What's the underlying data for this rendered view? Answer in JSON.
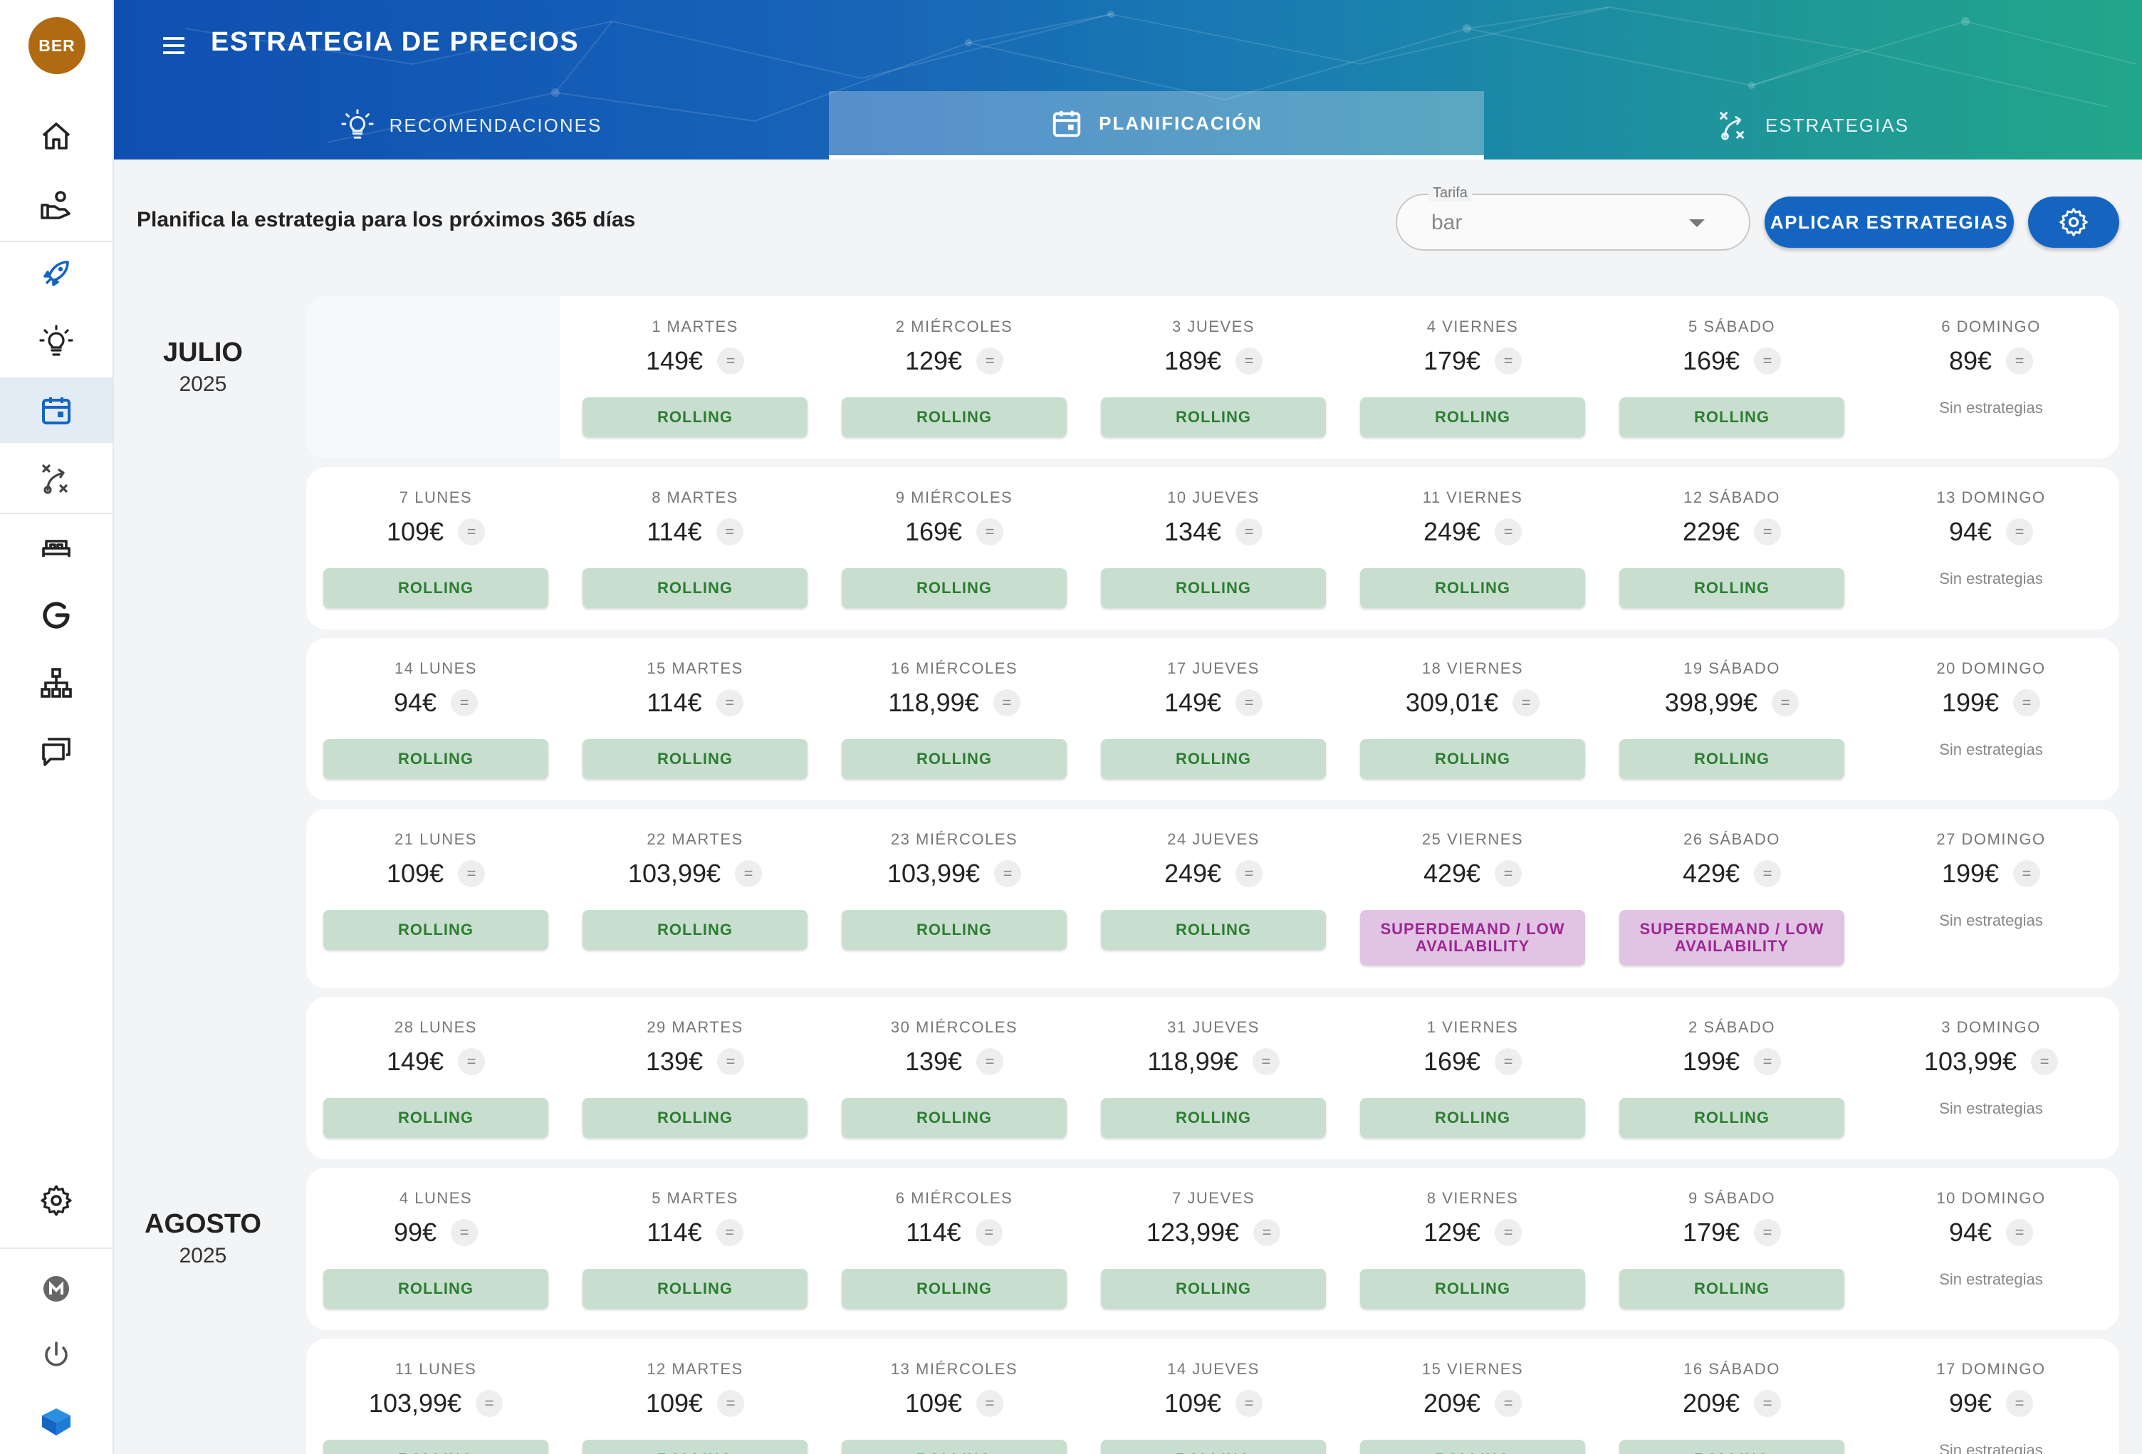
{
  "app": {
    "avatar_text": "BER",
    "title": "ESTRATEGIA DE PRECIOS",
    "colors": {
      "header_start": "#0f4fb0",
      "header_end": "#22a68a",
      "primary": "#1565c0",
      "rolling_bg": "#c8dfd0",
      "rolling_text": "#2e7d32",
      "superdemand_bg": "#e1c4e3",
      "superdemand_text": "#9c2792"
    }
  },
  "sidebar": {
    "items": [
      {
        "icon": "home-icon"
      },
      {
        "icon": "hand-money-icon"
      },
      {
        "icon": "rocket-icon"
      },
      {
        "icon": "lightbulb-icon"
      },
      {
        "icon": "calendar-icon",
        "active": true
      },
      {
        "icon": "strategy-icon"
      },
      {
        "icon": "bed-icon"
      },
      {
        "icon": "google-icon"
      },
      {
        "icon": "hierarchy-icon"
      },
      {
        "icon": "chat-icon"
      }
    ],
    "bottom": [
      {
        "icon": "settings-icon"
      },
      {
        "icon": "m-logo-icon"
      },
      {
        "icon": "power-icon"
      },
      {
        "icon": "brand-logo-icon"
      }
    ]
  },
  "tabs": [
    {
      "label": "RECOMENDACIONES",
      "icon": "lightbulb-icon"
    },
    {
      "label": "PLANIFICACIÓN",
      "icon": "calendar-icon",
      "active": true
    },
    {
      "label": "ESTRATEGIAS",
      "icon": "strategy-icon"
    }
  ],
  "toolbar": {
    "plan_text": "Planifica la estrategia para los próximos 365 días",
    "tarifa_label": "Tarifa",
    "tarifa_value": "bar",
    "apply_label": "APLICAR ESTRATEGIAS"
  },
  "months": [
    {
      "name": "JULIO",
      "year": "2025"
    },
    {
      "name": "AGOSTO",
      "year": "2025"
    }
  ],
  "eq_symbol": "=",
  "no_strategy_text": "Sin estrategias",
  "weeks": [
    {
      "days": [
        null,
        {
          "label": "1 MARTES",
          "price": "149€",
          "badge": "ROLLING"
        },
        {
          "label": "2 MIÉRCOLES",
          "price": "129€",
          "badge": "ROLLING"
        },
        {
          "label": "3 JUEVES",
          "price": "189€",
          "badge": "ROLLING"
        },
        {
          "label": "4 VIERNES",
          "price": "179€",
          "badge": "ROLLING"
        },
        {
          "label": "5 SÁBADO",
          "price": "169€",
          "badge": "ROLLING"
        },
        {
          "label": "6 DOMINGO",
          "price": "89€",
          "badge": null
        }
      ]
    },
    {
      "days": [
        {
          "label": "7 LUNES",
          "price": "109€",
          "badge": "ROLLING"
        },
        {
          "label": "8 MARTES",
          "price": "114€",
          "badge": "ROLLING"
        },
        {
          "label": "9 MIÉRCOLES",
          "price": "169€",
          "badge": "ROLLING"
        },
        {
          "label": "10 JUEVES",
          "price": "134€",
          "badge": "ROLLING"
        },
        {
          "label": "11 VIERNES",
          "price": "249€",
          "badge": "ROLLING"
        },
        {
          "label": "12 SÁBADO",
          "price": "229€",
          "badge": "ROLLING"
        },
        {
          "label": "13 DOMINGO",
          "price": "94€",
          "badge": null
        }
      ]
    },
    {
      "days": [
        {
          "label": "14 LUNES",
          "price": "94€",
          "badge": "ROLLING"
        },
        {
          "label": "15 MARTES",
          "price": "114€",
          "badge": "ROLLING"
        },
        {
          "label": "16 MIÉRCOLES",
          "price": "118,99€",
          "badge": "ROLLING"
        },
        {
          "label": "17 JUEVES",
          "price": "149€",
          "badge": "ROLLING"
        },
        {
          "label": "18 VIERNES",
          "price": "309,01€",
          "badge": "ROLLING"
        },
        {
          "label": "19 SÁBADO",
          "price": "398,99€",
          "badge": "ROLLING"
        },
        {
          "label": "20 DOMINGO",
          "price": "199€",
          "badge": null
        }
      ]
    },
    {
      "days": [
        {
          "label": "21 LUNES",
          "price": "109€",
          "badge": "ROLLING"
        },
        {
          "label": "22 MARTES",
          "price": "103,99€",
          "badge": "ROLLING"
        },
        {
          "label": "23 MIÉRCOLES",
          "price": "103,99€",
          "badge": "ROLLING"
        },
        {
          "label": "24 JUEVES",
          "price": "249€",
          "badge": "ROLLING"
        },
        {
          "label": "25 VIERNES",
          "price": "429€",
          "badge": "SUPERDEMAND / LOW AVAILABILITY"
        },
        {
          "label": "26 SÁBADO",
          "price": "429€",
          "badge": "SUPERDEMAND / LOW AVAILABILITY"
        },
        {
          "label": "27 DOMINGO",
          "price": "199€",
          "badge": null
        }
      ]
    },
    {
      "days": [
        {
          "label": "28 LUNES",
          "price": "149€",
          "badge": "ROLLING"
        },
        {
          "label": "29 MARTES",
          "price": "139€",
          "badge": "ROLLING"
        },
        {
          "label": "30 MIÉRCOLES",
          "price": "139€",
          "badge": "ROLLING"
        },
        {
          "label": "31 JUEVES",
          "price": "118,99€",
          "badge": "ROLLING"
        },
        {
          "label": "1 VIERNES",
          "price": "169€",
          "badge": "ROLLING"
        },
        {
          "label": "2 SÁBADO",
          "price": "199€",
          "badge": "ROLLING"
        },
        {
          "label": "3 DOMINGO",
          "price": "103,99€",
          "badge": null
        }
      ]
    },
    {
      "days": [
        {
          "label": "4 LUNES",
          "price": "99€",
          "badge": "ROLLING"
        },
        {
          "label": "5 MARTES",
          "price": "114€",
          "badge": "ROLLING"
        },
        {
          "label": "6 MIÉRCOLES",
          "price": "114€",
          "badge": "ROLLING"
        },
        {
          "label": "7 JUEVES",
          "price": "123,99€",
          "badge": "ROLLING"
        },
        {
          "label": "8 VIERNES",
          "price": "129€",
          "badge": "ROLLING"
        },
        {
          "label": "9 SÁBADO",
          "price": "179€",
          "badge": "ROLLING"
        },
        {
          "label": "10 DOMINGO",
          "price": "94€",
          "badge": null
        }
      ]
    },
    {
      "days": [
        {
          "label": "11 LUNES",
          "price": "103,99€",
          "badge": "ROLLING"
        },
        {
          "label": "12 MARTES",
          "price": "109€",
          "badge": "ROLLING"
        },
        {
          "label": "13 MIÉRCOLES",
          "price": "109€",
          "badge": "ROLLING"
        },
        {
          "label": "14 JUEVES",
          "price": "109€",
          "badge": "ROLLING"
        },
        {
          "label": "15 VIERNES",
          "price": "209€",
          "badge": "ROLLING"
        },
        {
          "label": "16 SÁBADO",
          "price": "209€",
          "badge": "ROLLING"
        },
        {
          "label": "17 DOMINGO",
          "price": "99€",
          "badge": null
        }
      ]
    }
  ]
}
